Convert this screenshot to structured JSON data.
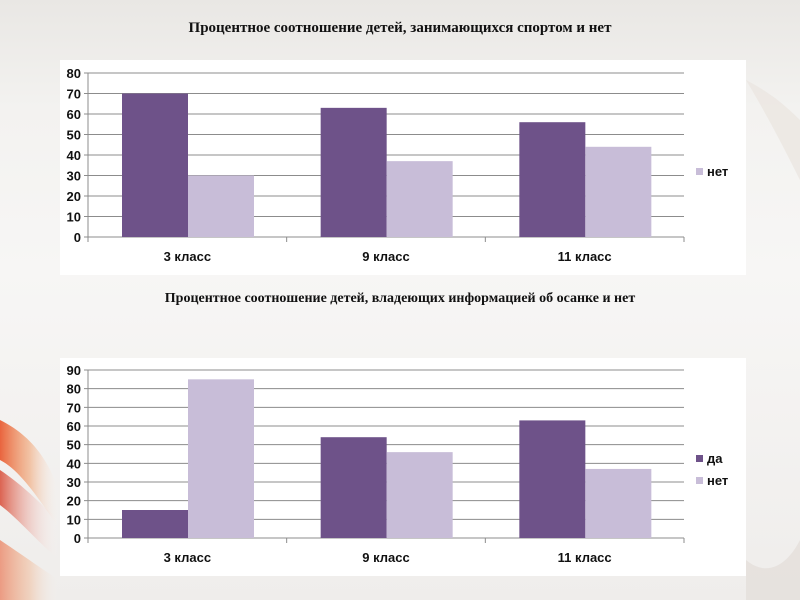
{
  "titles": {
    "chart1": "Процентное соотношение детей, занимающихся спортом и нет",
    "chart2": "Процентное соотношение детей, владеющих информацией об осанке и нет"
  },
  "colors": {
    "series_dark": "#6e5289",
    "series_light": "#c8bdd8",
    "grid": "#8c8c8c"
  },
  "chart_data": [
    {
      "type": "bar",
      "title": "Процентное соотношение детей, занимающихся спортом и нет",
      "categories": [
        "3 класс",
        "9 класс",
        "11 класс"
      ],
      "series": [
        {
          "values": [
            70,
            63,
            56
          ]
        },
        {
          "name": "нет",
          "values": [
            30,
            37,
            44
          ]
        }
      ],
      "ylim": [
        0,
        80
      ],
      "yticks": [
        0,
        10,
        20,
        30,
        40,
        50,
        60,
        70,
        80
      ],
      "grid": true,
      "legend": "right",
      "legend_entries": [
        "нет"
      ]
    },
    {
      "type": "bar",
      "title": "Процентное соотношение детей, владеющих информацией об осанке и нет",
      "categories": [
        "3 класс",
        "9 класс",
        "11 класс"
      ],
      "series": [
        {
          "name": "да",
          "values": [
            15,
            54,
            63
          ]
        },
        {
          "name": "нет",
          "values": [
            85,
            46,
            37
          ]
        }
      ],
      "ylim": [
        0,
        90
      ],
      "yticks": [
        0,
        10,
        20,
        30,
        40,
        50,
        60,
        70,
        80,
        90
      ],
      "grid": true,
      "legend": "right",
      "legend_entries": [
        "да",
        "нет"
      ]
    }
  ]
}
